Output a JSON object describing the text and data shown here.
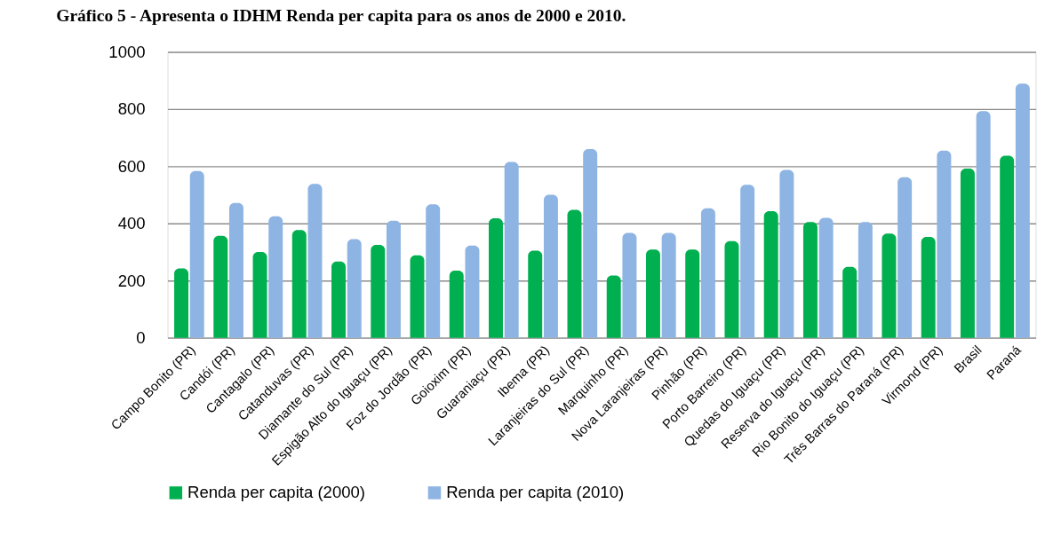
{
  "chart_data": {
    "type": "bar",
    "title": "Gráfico 5 - Apresenta o IDHM Renda per capita para os anos de 2000 e 2010.",
    "categories": [
      "Campo Bonito (PR)",
      "Candói (PR)",
      "Cantagalo (PR)",
      "Catanduvas (PR)",
      "Diamante do Sul (PR)",
      "Espigão Alto do Iguaçu (PR)",
      "Foz do Jordão (PR)",
      "Goioxim (PR)",
      "Guaraniaçu (PR)",
      "Ibema (PR)",
      "Laranjeiras do Sul (PR)",
      "Marquinho (PR)",
      "Nova Laranjeiras (PR)",
      "Pinhão (PR)",
      "Porto Barreiro (PR)",
      "Quedas do Iguaçu (PR)",
      "Reserva do Iguaçu (PR)",
      "Rio Bonito do Iguaçu (PR)",
      "Três Barras do Paraná (PR)",
      "Virmond (PR)",
      "Brasil",
      "Paraná"
    ],
    "series": [
      {
        "name": "Renda per capita (2000)",
        "color": "#00b050",
        "values": [
          243,
          357,
          300,
          377,
          267,
          325,
          289,
          235,
          418,
          305,
          448,
          218,
          309,
          309,
          338,
          443,
          405,
          248,
          365,
          353,
          592,
          637
        ]
      },
      {
        "name": "Renda per capita (2010)",
        "color": "#8eb4e3",
        "values": [
          583,
          472,
          425,
          538,
          345,
          410,
          467,
          323,
          615,
          500,
          660,
          367,
          367,
          453,
          535,
          587,
          420,
          405,
          562,
          655,
          793,
          889
        ]
      }
    ],
    "ylim": [
      0,
      1000
    ],
    "yticks": [
      0,
      200,
      400,
      600,
      800,
      1000
    ],
    "grid": "y",
    "legend": "bottom"
  }
}
